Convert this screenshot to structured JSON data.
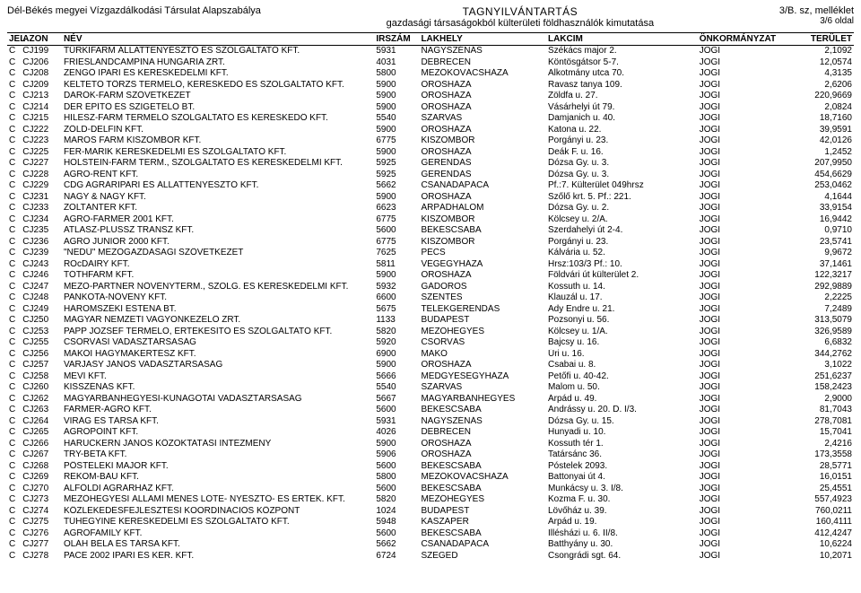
{
  "header": {
    "left": "Dél-Békés megyei Vízgazdálkodási Társulat Alapszabálya",
    "title": "TAGNYILVÁNTARTÁS",
    "subtitle": "gazdasági társaságokból külterületi földhasználók kimutatása",
    "right_top": "3/B. sz, melléklet",
    "right_bottom": "3/6 oldal"
  },
  "columns": [
    "JEL",
    "AZON",
    "NÉV",
    "IRSZÁM",
    "LAKHELY",
    "LAKCIM",
    "ÖNKORMÁNYZAT",
    "TERÜLET"
  ],
  "rows": [
    [
      "C",
      "CJ199",
      "TÜRKIFARM ÁLLATTENYÉSZTŐ ÉS SZOLGÁLTATÓ KFT.",
      "5931",
      "NAGYSZÉNÁS",
      "Székács major 2.",
      "JOGI",
      "2,1092"
    ],
    [
      "C",
      "CJ206",
      "FRIESLANDCAMPINA HUNGÁRIA ZRT.",
      "4031",
      "DEBRECEN",
      "Köntösgátsor 5-7.",
      "JOGI",
      "12,0574"
    ],
    [
      "C",
      "CJ208",
      "ZENGŐ IPARI ÉS KERESKEDELMI KFT.",
      "5800",
      "MEZŐKOVÁCSHÁZA",
      "Alkotmány utca 70.",
      "JOGI",
      "4,3135"
    ],
    [
      "C",
      "CJ209",
      "KELTETŐ TÖRZS TERMELŐ, KERESKEDŐ ÉS SZOLGÁLTATÓ KFT.",
      "5900",
      "OROSHÁZA",
      "Ravasz tanya 109.",
      "JOGI",
      "2,6206"
    ],
    [
      "C",
      "CJ213",
      "DARÓK-FARM SZÖVETKEZET",
      "5900",
      "OROSHÁZA",
      "Zöldfa u. 27.",
      "JOGI",
      "220,9669"
    ],
    [
      "C",
      "CJ214",
      "DER ÉPÍTŐ ÉS SZIGETELŐ BT.",
      "5900",
      "OROSHÁZA",
      "Vásárhelyi út 79.",
      "JOGI",
      "2,0824"
    ],
    [
      "C",
      "CJ215",
      "HILESZ-FARM TERMELŐ SZOLGÁLTATÓ ÉS KERESKEDŐ KFT.",
      "5540",
      "SZARVAS",
      "Damjanich u. 40.",
      "JOGI",
      "18,7160"
    ],
    [
      "C",
      "CJ222",
      "ZÖLD-DELFIN KFT.",
      "5900",
      "OROSHÁZA",
      "Katona u. 22.",
      "JOGI",
      "39,9591"
    ],
    [
      "C",
      "CJ223",
      "MAROS FARM KISZOMBOR KFT.",
      "6775",
      "KISZOMBOR",
      "Porgányi u. 23.",
      "JOGI",
      "42,0126"
    ],
    [
      "C",
      "CJ225",
      "FER-MARIK KERESKEDELMI ÉS SZOLGÁLTATÓ KFT.",
      "5900",
      "OROSHÁZA",
      "Deák F. u. 16.",
      "JOGI",
      "1,2452"
    ],
    [
      "C",
      "CJ227",
      "HOLSTEIN-FARM TERM., SZOLGÁLTATÓ ÉS KERESKEDELMI KFT.",
      "5925",
      "GERENDÁS",
      "Dózsa Gy. u. 3.",
      "JOGI",
      "207,9950"
    ],
    [
      "C",
      "CJ228",
      "AGRO-RENT KFT.",
      "5925",
      "GERENDÁS",
      "Dózsa Gy. u. 3.",
      "JOGI",
      "454,6629"
    ],
    [
      "C",
      "CJ229",
      "CDG AGRÁRIPARI ÉS ÁLLATTENYÉSZTŐ KFT.",
      "5662",
      "CSANÁDAPÁCA",
      "Pf.:7. Külterület 049hrsz",
      "JOGI",
      "253,0462"
    ],
    [
      "C",
      "CJ231",
      "NAGY & NAGY KFT.",
      "5900",
      "OROSHÁZA",
      "Szőlő krt. 5. Pf.: 221.",
      "JOGI",
      "4,1644"
    ],
    [
      "C",
      "CJ233",
      "ZOLTÁNTÉR KFT.",
      "6623",
      "ÁRPÁDHALOM",
      "Dózsa Gy. u. 2.",
      "JOGI",
      "33,9154"
    ],
    [
      "C",
      "CJ234",
      "AGRO-FARMER 2001 KFT.",
      "6775",
      "KISZOMBOR",
      "Kölcsey u. 2/A.",
      "JOGI",
      "16,9442"
    ],
    [
      "C",
      "CJ235",
      "ATLASZ-PLUSSZ TRANSZ KFT.",
      "5600",
      "BÉKÉSCSABA",
      "Szerdahelyi út 2-4.",
      "JOGI",
      "0,9710"
    ],
    [
      "C",
      "CJ236",
      "AGRO JUNIOR 2000 KFT.",
      "6775",
      "KISZOMBOR",
      "Porgányi u. 23.",
      "JOGI",
      "23,5741"
    ],
    [
      "C",
      "CJ239",
      "\"NEDŰ\" MEZŐGAZDASÁGI SZÖVETKEZET",
      "7625",
      "PÉCS",
      "Kálvária u. 52.",
      "JOGI",
      "9,9672"
    ],
    [
      "C",
      "CJ243",
      "ROcDAIRY KFT.",
      "5811",
      "VÉGEGYHÁZA",
      "Hrsz:103/3  Pf.: 10.",
      "JOGI",
      "37,1461"
    ],
    [
      "C",
      "CJ246",
      "TÓTHFARM KFT.",
      "5900",
      "OROSHÁZA",
      "Földvári út külterület 2.",
      "JOGI",
      "122,3217"
    ],
    [
      "C",
      "CJ247",
      "MEZŐ-PARTNER NÖVÉNYTERM., SZOLG. ÉS KERESKEDELMI KFT.",
      "5932",
      "GÁDOROS",
      "Kossuth u. 14.",
      "JOGI",
      "292,9889"
    ],
    [
      "C",
      "CJ248",
      "PANKOTA-NÖVÉNY KFT.",
      "6600",
      "SZENTES",
      "Klauzál u. 17.",
      "JOGI",
      "2,2225"
    ],
    [
      "C",
      "CJ249",
      "HÁROMSZÉKI ESTENA BT.",
      "5675",
      "TELEKGERENDÁS",
      "Ady Endre u. 21.",
      "JOGI",
      "7,2489"
    ],
    [
      "C",
      "CJ250",
      "MAGYAR NEMZETI VAGYONKEZELŐ ZRT.",
      "1133",
      "BUDAPEST",
      "Pozsonyi u. 56.",
      "JOGI",
      "313,5079"
    ],
    [
      "C",
      "CJ253",
      "PAPP JÓZSEF TERMELŐ, ÉRTÉKESÍTŐ ÉS SZOLGÁLTATÓ KFT.",
      "5820",
      "MEZŐHEGYES",
      "Kölcsey u. 1/A.",
      "JOGI",
      "326,9589"
    ],
    [
      "C",
      "CJ255",
      "CSORVÁSI VADÁSZTÁRSASÁG",
      "5920",
      "CSORVÁS",
      "Bajcsy u. 16.",
      "JOGI",
      "6,6832"
    ],
    [
      "C",
      "CJ256",
      "MAKÓI HAGYMAKERTÉSZ KFT.",
      "6900",
      "MAKÓ",
      "Úri u. 16.",
      "JOGI",
      "344,2762"
    ],
    [
      "C",
      "CJ257",
      "VARJASY JÁNOS VADÁSZTÁRSASÁG",
      "5900",
      "OROSHÁZA",
      "Csabai u. 8.",
      "JOGI",
      "3,1022"
    ],
    [
      "C",
      "CJ258",
      "MEVI KFT.",
      "5666",
      "MEDGYESEGYHÁZA",
      "Petőfi u. 40-42.",
      "JOGI",
      "251,6237"
    ],
    [
      "C",
      "CJ260",
      "KISSZÉNÁS KFT.",
      "5540",
      "SZARVAS",
      "Malom u. 50.",
      "JOGI",
      "158,2423"
    ],
    [
      "C",
      "CJ262",
      "MAGYARBÁNHEGYESI-KUNÁGOTAI VADÁSZTÁRSASÁG",
      "5667",
      "MAGYARBÁNHEGYES",
      "Árpád u. 49.",
      "JOGI",
      "2,9000"
    ],
    [
      "C",
      "CJ263",
      "FARMER-AGRO KFT.",
      "5600",
      "BÉKÉSCSABA",
      "Andrássy u. 20. D. I/3.",
      "JOGI",
      "81,7043"
    ],
    [
      "C",
      "CJ264",
      "VIRÁG ÉS TÁRSA KFT.",
      "5931",
      "NAGYSZÉNÁS",
      "Dózsa Gy. u. 15.",
      "JOGI",
      "278,7081"
    ],
    [
      "C",
      "CJ265",
      "AGROPOINT KFT.",
      "4026",
      "DEBRECEN",
      "Hunyadi u. 10.",
      "JOGI",
      "15,7041"
    ],
    [
      "C",
      "CJ266",
      "HARUCKERN JÁNOS KÖZOKTATÁSI INTÉZMÉNY",
      "5900",
      "OROSHÁZA",
      "Kossuth tér 1.",
      "JOGI",
      "2,4216"
    ],
    [
      "C",
      "CJ267",
      "TRY-BÉTA KFT.",
      "5906",
      "OROSHÁZA",
      "Tatársánc 36.",
      "JOGI",
      "173,3558"
    ],
    [
      "C",
      "CJ268",
      "PÖSTELEKI MAJOR KFT.",
      "5600",
      "BÉKÉSCSABA",
      "Póstelek 2093.",
      "JOGI",
      "28,5771"
    ],
    [
      "C",
      "CJ269",
      "REKOM-BAU KFT.",
      "5800",
      "MEZŐKOVÁCSHÁZA",
      "Battonyai út 4.",
      "JOGI",
      "16,0151"
    ],
    [
      "C",
      "CJ270",
      "ALFÖLDI AGRÁRHÁZ KFT.",
      "5600",
      "BÉKÉSCSABA",
      "Munkácsy u. 3. I/8.",
      "JOGI",
      "25,4551"
    ],
    [
      "C",
      "CJ273",
      "MEZŐHEGYESI ÁLLAMI MÉNES LÓTE- NYÉSZTŐ- ÉS ÉRTÉK. KFT.",
      "5820",
      "MEZŐHEGYES",
      "Kozma F. u. 30.",
      "JOGI",
      "557,4923"
    ],
    [
      "C",
      "CJ274",
      "KÖZLEKEDÉSFEJLESZTÉSI KOORDINÁCIÓS KÖZPONT",
      "1024",
      "BUDAPEST",
      "Lövőház u. 39.",
      "JOGI",
      "760,0211"
    ],
    [
      "C",
      "CJ275",
      "TŰHEGYINÉ KERESKEDELMI ÉS SZOLGÁLTATÓ KFT.",
      "5948",
      "KASZAPER",
      "Árpád u. 19.",
      "JOGI",
      "160,4111"
    ],
    [
      "C",
      "CJ276",
      "AGROFAMILY KFT.",
      "5600",
      "BÉKÉSCSABA",
      "Illésházi u. 6. II/8.",
      "JOGI",
      "412,4247"
    ],
    [
      "C",
      "CJ277",
      "OLÁH BÉLA ÉS TÁRSA KFT.",
      "5662",
      "CSANÁDAPÁCA",
      "Batthyány u. 30.",
      "JOGI",
      "10,6224"
    ],
    [
      "C",
      "CJ278",
      "PACE 2002 IPARI ÉS KER. KFT.",
      "6724",
      "SZEGED",
      "Csongrádi sgt. 64.",
      "JOGI",
      "10,2071"
    ]
  ]
}
